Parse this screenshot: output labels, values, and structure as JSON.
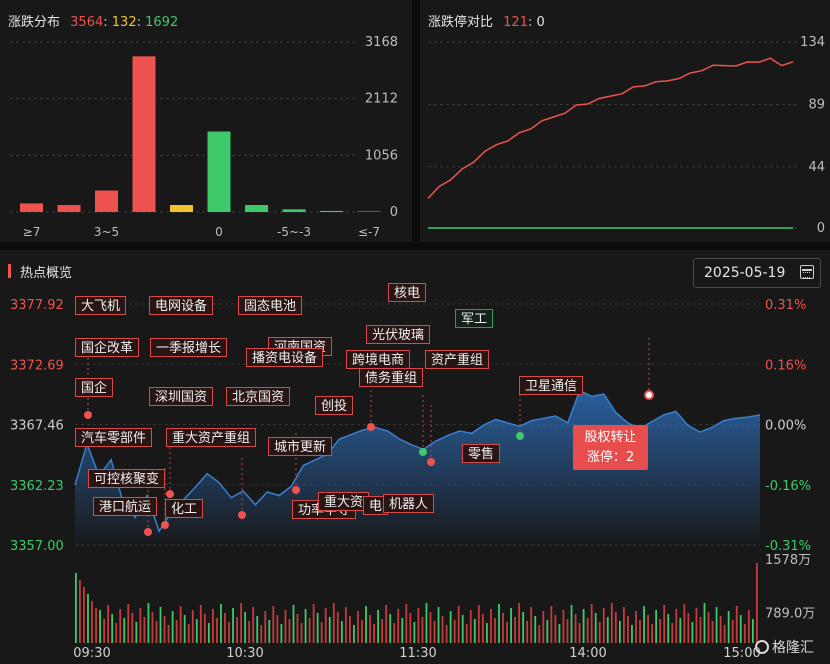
{
  "dist_panel": {
    "title": "涨跌分布",
    "up": "3564",
    "sep1": ":",
    "flat": "132",
    "sep2": ":",
    "down": "1692"
  },
  "limit_panel": {
    "title": "涨跌停对比",
    "up": "121",
    "sep": ":",
    "down": "0"
  },
  "hotspot": {
    "title": "热点概览",
    "date": "2025-05-19",
    "tooltip": {
      "name": "股权转让",
      "detail": "涨停：2"
    },
    "tags": [
      "大飞机",
      "电网设备",
      "固态电池",
      "核电",
      "军工",
      "国企改革",
      "一季报增长",
      "河南国资",
      "播资电设备",
      "光伏玻璃",
      "跨境电商",
      "资产重组",
      "债务重组",
      "国企",
      "深圳国资",
      "北京国资",
      "创投",
      "卫星通信",
      "汽车零部件",
      "重大资产重组",
      "城市更新",
      "零售",
      "可控核聚变",
      "港口航运",
      "化工",
      "功率半导",
      "重大资",
      "电",
      "机器人"
    ]
  },
  "brand": "格隆汇",
  "colors": {
    "up": "#ef5350",
    "down": "#3ec96a",
    "flat": "#f2c230",
    "area": "#2d6cb5"
  },
  "chart_data": [
    {
      "type": "bar",
      "title": "涨跌分布",
      "categories": [
        "≥7",
        "",
        "3~5",
        "",
        "",
        "0",
        "",
        "-5~-3",
        "",
        ""
      ],
      "axis_labels": [
        "≥7",
        "3~5",
        "0",
        "-5~-3",
        "≤-7"
      ],
      "values": [
        160,
        130,
        400,
        2900,
        130,
        1500,
        130,
        50,
        20,
        10
      ],
      "colors": [
        "up",
        "up",
        "up",
        "up",
        "flat",
        "down",
        "down",
        "down",
        "down",
        "down"
      ],
      "yticks": [
        "3168",
        "2112",
        "1056",
        "0"
      ],
      "ylim": [
        0,
        3168
      ]
    },
    {
      "type": "line",
      "title": "涨跌停对比",
      "yticks": [
        "134",
        "89",
        "44",
        "0"
      ],
      "ylim": [
        0,
        134
      ],
      "series": [
        {
          "values": [
            20,
            30,
            36,
            42,
            48,
            54,
            60,
            64,
            68,
            72,
            76,
            80,
            84,
            88,
            90,
            92,
            95,
            98,
            101,
            103,
            104,
            106,
            109,
            111,
            114,
            116,
            117,
            118,
            119,
            120,
            121,
            117,
            121
          ]
        },
        {
          "values": [
            0,
            0,
            0,
            0,
            0,
            0,
            0,
            0,
            0,
            0,
            0,
            0,
            0,
            0,
            0,
            0,
            0,
            0,
            0,
            0,
            0,
            0,
            0,
            0,
            0,
            0,
            0,
            0,
            0,
            0,
            0,
            0,
            0
          ]
        }
      ]
    },
    {
      "type": "area",
      "title": "热点概览",
      "yticks_left": [
        "3377.92",
        "3372.69",
        "3367.46",
        "3362.23",
        "3357.00"
      ],
      "yticks_right": [
        "0.31%",
        "0.16%",
        "0.00%",
        "-0.16%",
        "-0.31%"
      ],
      "ylim": [
        3357.0,
        3377.92
      ],
      "xticks": [
        "09:30",
        "10:30",
        "11:30",
        "14:00",
        "15:00"
      ],
      "values": [
        3362.2,
        3365.8,
        3363.0,
        3364.4,
        3360.7,
        3359.4,
        3361.3,
        3358.2,
        3359.8,
        3360.9,
        3362.0,
        3363.2,
        3362.4,
        3361.1,
        3361.7,
        3360.5,
        3361.6,
        3361.3,
        3362.1,
        3363.9,
        3364.4,
        3364.9,
        3366.2,
        3366.6,
        3367.0,
        3367.2,
        3366.9,
        3366.2,
        3365.7,
        3365.3,
        3366.0,
        3366.5,
        3366.9,
        3366.7,
        3367.4,
        3367.9,
        3367.6,
        3367.3,
        3367.8,
        3368.0,
        3368.2,
        3367.6,
        3370.4,
        3369.9,
        3370.1,
        3368.5,
        3367.6,
        3367.1,
        3367.7,
        3368.3,
        3368.6,
        3367.4,
        3366.8,
        3367.2,
        3367.8,
        3368.0,
        3368.1,
        3368.3
      ],
      "volume_ticks": [
        "1578万",
        "789.0万"
      ]
    }
  ]
}
